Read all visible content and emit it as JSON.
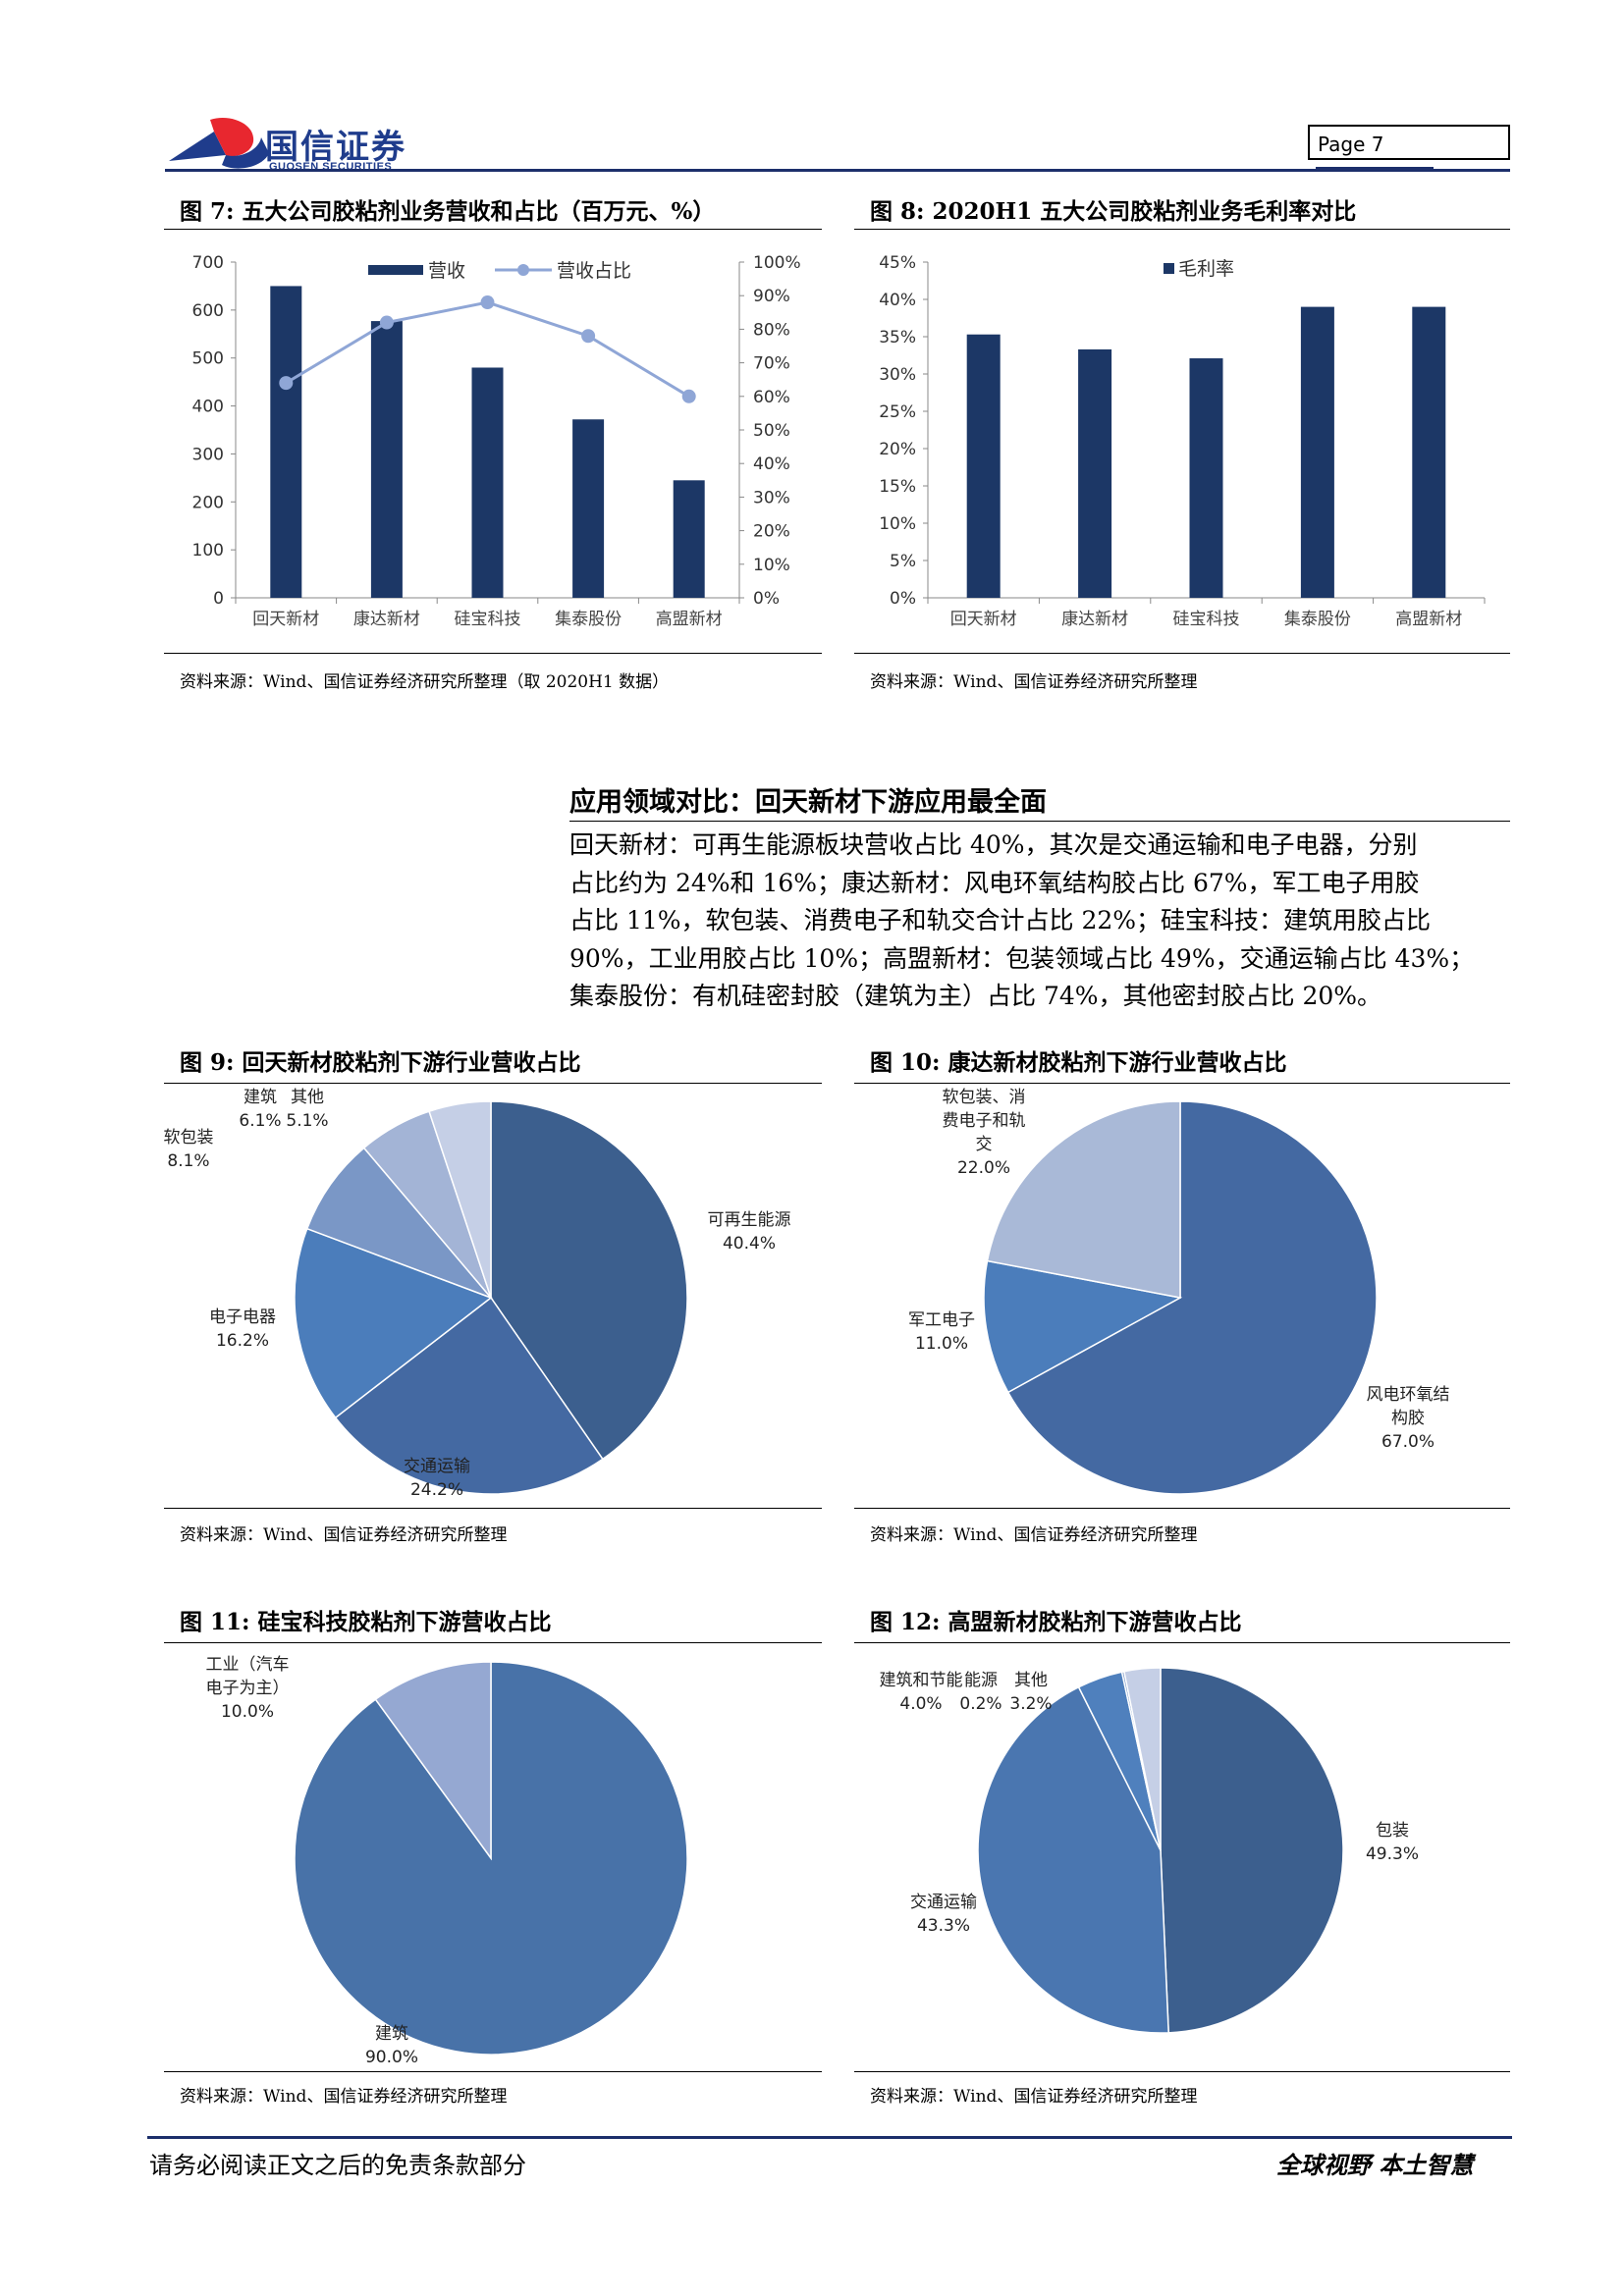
{
  "header": {
    "company_cn": "国信证券",
    "company_en": "GUOSEN SECURITIES",
    "page_label": "Page  7"
  },
  "colors": {
    "navy": "#1c3766",
    "line_blue": "#8fa6d6",
    "pie_dark": "#3c5f8e",
    "pie_mid": "#4a78b3",
    "pie_light": "#a9b9d7"
  },
  "fig7": {
    "title": "图 7:  五大公司胶粘剂业务营收和占比（百万元、%）",
    "source": "资料来源：Wind、国信证券经济研究所整理（取 2020H1 数据）"
  },
  "fig8": {
    "title": "图 8:  2020H1 五大公司胶粘剂业务毛利率对比",
    "source": "资料来源：Wind、国信证券经济研究所整理"
  },
  "section": {
    "title": "应用领域对比：回天新材下游应用最全面",
    "lines": [
      "回天新材：可再生能源板块营收占比 40%，其次是交通运输和电子电器，分别",
      "占比约为 24%和 16%；康达新材：风电环氧结构胶占比 67%，军工电子用胶",
      "占比 11%，软包装、消费电子和轨交合计占比 22%；硅宝科技：建筑用胶占比",
      "90%，工业用胶占比 10%；高盟新材：包装领域占比 49%，交通运输占比 43%；",
      "集泰股份：有机硅密封胶（建筑为主）占比 74%，其他密封胶占比 20%。"
    ]
  },
  "fig9": {
    "title": "图 9:  回天新材胶粘剂下游行业营收占比",
    "source": "资料来源：Wind、国信证券经济研究所整理"
  },
  "fig10": {
    "title": "图 10:  康达新材胶粘剂下游行业营收占比",
    "source": "资料来源：Wind、国信证券经济研究所整理"
  },
  "fig11": {
    "title": "图 11:  硅宝科技胶粘剂下游营收占比",
    "source": "资料来源：Wind、国信证券经济研究所整理"
  },
  "fig12": {
    "title": "图 12:  高盟新材胶粘剂下游营收占比",
    "source": "资料来源：Wind、国信证券经济研究所整理"
  },
  "footer": {
    "left": "请务必阅读正文之后的免责条款部分",
    "right": "全球视野   本土智慧"
  },
  "chart_data": [
    {
      "id": "fig7",
      "type": "bar",
      "categories": [
        "回天新材",
        "康达新材",
        "硅宝科技",
        "集泰股份",
        "高盟新材"
      ],
      "series": [
        {
          "name": "营收",
          "type": "bar",
          "axis": "left",
          "values": [
            650,
            577,
            480,
            372,
            245
          ]
        },
        {
          "name": "营收占比",
          "type": "line",
          "axis": "right",
          "values": [
            64,
            82,
            88,
            78,
            60
          ]
        }
      ],
      "ylim": [
        0,
        700
      ],
      "yticks": [
        "0",
        "100",
        "200",
        "300",
        "400",
        "500",
        "600",
        "700"
      ],
      "y2lim": [
        0,
        100
      ],
      "y2ticks": [
        "0%",
        "10%",
        "20%",
        "30%",
        "40%",
        "50%",
        "60%",
        "70%",
        "80%",
        "90%",
        "100%"
      ],
      "legend": "top-center",
      "grid": false
    },
    {
      "id": "fig8",
      "type": "bar",
      "categories": [
        "回天新材",
        "康达新材",
        "硅宝科技",
        "集泰股份",
        "高盟新材"
      ],
      "series": [
        {
          "name": "毛利率",
          "values": [
            35.3,
            33.3,
            32.1,
            39.0,
            39.0
          ]
        }
      ],
      "ylim": [
        0,
        45
      ],
      "yticks": [
        "0%",
        "5%",
        "10%",
        "15%",
        "20%",
        "25%",
        "30%",
        "35%",
        "40%",
        "45%"
      ],
      "legend": "top-left",
      "grid": false
    },
    {
      "id": "fig9",
      "type": "pie",
      "slices": [
        {
          "label": "可再生能源",
          "pct": "40.4%",
          "value": 40.4,
          "color": "#3c5f8e"
        },
        {
          "label": "交通运输",
          "pct": "24.2%",
          "value": 24.2,
          "color": "#4469a2"
        },
        {
          "label": "电子电器",
          "pct": "16.2%",
          "value": 16.2,
          "color": "#4b7dbb"
        },
        {
          "label": "软包装",
          "pct": "8.1%",
          "value": 8.1,
          "color": "#7a97c6"
        },
        {
          "label": "建筑",
          "pct": "6.1%",
          "value": 6.1,
          "color": "#a3b4d6"
        },
        {
          "label": "其他",
          "pct": "5.1%",
          "value": 5.1,
          "color": "#c5cfe6"
        }
      ]
    },
    {
      "id": "fig10",
      "type": "pie",
      "slices": [
        {
          "label": "风电环氧结构胶",
          "pct": "67.0%",
          "value": 67.0,
          "color": "#4469a2"
        },
        {
          "label": "军工电子",
          "pct": "11.0%",
          "value": 11.0,
          "color": "#4b7dbb"
        },
        {
          "label": "软包装、消费电子和轨交",
          "pct": "22.0%",
          "value": 22.0,
          "color": "#a9b9d7"
        }
      ]
    },
    {
      "id": "fig11",
      "type": "pie",
      "slices": [
        {
          "label": "建筑",
          "pct": "90.0%",
          "value": 90.0,
          "color": "#4872a8"
        },
        {
          "label": "工业（汽车电子为主）",
          "pct": "10.0%",
          "value": 10.0,
          "color": "#95a8d2"
        }
      ]
    },
    {
      "id": "fig12",
      "type": "pie",
      "slices": [
        {
          "label": "包装",
          "pct": "49.3%",
          "value": 49.3,
          "color": "#3c5f8e"
        },
        {
          "label": "交通运输",
          "pct": "43.3%",
          "value": 43.3,
          "color": "#4a76b0"
        },
        {
          "label": "建筑和节能",
          "pct": "4.0%",
          "value": 4.0,
          "color": "#4f80bd"
        },
        {
          "label": "能源",
          "pct": "0.2%",
          "value": 0.2,
          "color": "#7c99c8"
        },
        {
          "label": "其他",
          "pct": "3.2%",
          "value": 3.2,
          "color": "#c5cfe6"
        }
      ]
    }
  ]
}
